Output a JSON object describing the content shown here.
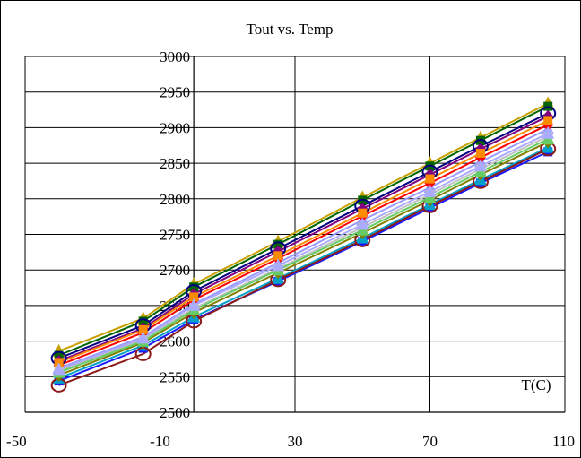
{
  "chart_data": {
    "type": "line",
    "title": "Tout vs. Temp",
    "xlabel": "T(C)",
    "ylabel": "",
    "xlim": [
      -50,
      110
    ],
    "ylim": [
      2500,
      3000
    ],
    "x_ticks": [
      -50,
      -10,
      30,
      70,
      110
    ],
    "y_ticks": [
      2500,
      2550,
      2600,
      2650,
      2700,
      2750,
      2800,
      2850,
      2900,
      2950,
      3000
    ],
    "grid": true,
    "legend": "none",
    "x": [
      -40,
      -15,
      0,
      25,
      50,
      70,
      85,
      105
    ],
    "series": [
      {
        "color": "#1a1aff",
        "marker": "square",
        "values": [
          2544,
          2590,
          2630,
          2684,
          2740,
          2787,
          2822,
          2866
        ]
      },
      {
        "color": "#00a0c8",
        "marker": "triangle",
        "values": [
          2548,
          2594,
          2634,
          2688,
          2745,
          2792,
          2827,
          2872
        ]
      },
      {
        "color": "#8b1a1a",
        "marker": "circle",
        "values": [
          2538,
          2582,
          2628,
          2686,
          2742,
          2790,
          2824,
          2870
        ]
      },
      {
        "color": "#c8a000",
        "marker": "triangle",
        "values": [
          2586,
          2632,
          2680,
          2740,
          2802,
          2850,
          2886,
          2934
        ]
      },
      {
        "color": "#006400",
        "marker": "square",
        "values": [
          2580,
          2628,
          2676,
          2736,
          2798,
          2846,
          2882,
          2930
        ]
      },
      {
        "color": "#000080",
        "marker": "circle",
        "values": [
          2576,
          2622,
          2670,
          2730,
          2790,
          2838,
          2874,
          2920
        ]
      },
      {
        "color": "#800080",
        "marker": "diamond",
        "values": [
          2572,
          2618,
          2666,
          2726,
          2786,
          2834,
          2870,
          2916
        ]
      },
      {
        "color": "#9999ff",
        "marker": "triangle",
        "values": [
          2562,
          2606,
          2652,
          2710,
          2770,
          2816,
          2852,
          2898
        ]
      },
      {
        "color": "#ff0000",
        "marker": "diamond",
        "values": [
          2566,
          2612,
          2658,
          2716,
          2776,
          2822,
          2858,
          2904
        ]
      },
      {
        "color": "#ff8c00",
        "marker": "square",
        "values": [
          2570,
          2616,
          2662,
          2720,
          2780,
          2828,
          2864,
          2910
        ]
      },
      {
        "color": "#808000",
        "marker": "diamond",
        "values": [
          2552,
          2598,
          2640,
          2696,
          2752,
          2798,
          2834,
          2880
        ]
      },
      {
        "color": "#c0c0c0",
        "marker": "square",
        "values": [
          2558,
          2602,
          2646,
          2702,
          2760,
          2806,
          2842,
          2888
        ]
      },
      {
        "color": "#66cc66",
        "marker": "triangle",
        "values": [
          2556,
          2600,
          2644,
          2700,
          2756,
          2802,
          2838,
          2884
        ]
      },
      {
        "color": "#aaaaff",
        "marker": "triangle",
        "values": [
          2560,
          2604,
          2650,
          2706,
          2764,
          2810,
          2846,
          2892
        ]
      }
    ]
  }
}
